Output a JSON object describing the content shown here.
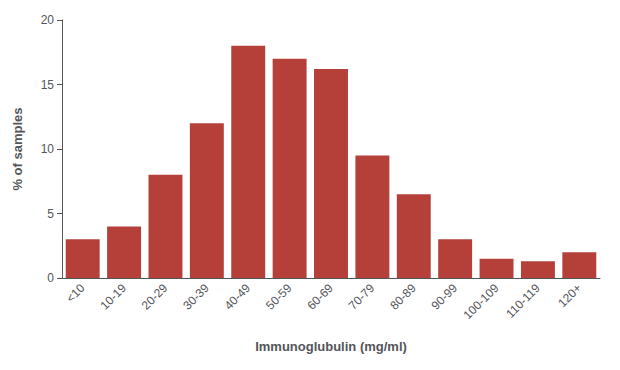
{
  "chart_data": {
    "type": "bar",
    "categories": [
      "<10",
      "10-19",
      "20-29",
      "30-39",
      "40-49",
      "50-59",
      "60-69",
      "70-79",
      "80-89",
      "90-99",
      "100-109",
      "110-119",
      "120+"
    ],
    "values": [
      3.0,
      4.0,
      8.0,
      12.0,
      18.0,
      17.0,
      16.2,
      9.5,
      6.5,
      3.0,
      1.5,
      1.3,
      2.0
    ],
    "color": "#b5403a",
    "xlabel": "Immunoglubulin (mg/ml)",
    "ylabel": "% of samples",
    "ylim": [
      0,
      20
    ],
    "yticks": [
      0,
      5,
      10,
      15,
      20
    ],
    "grid": false
  }
}
